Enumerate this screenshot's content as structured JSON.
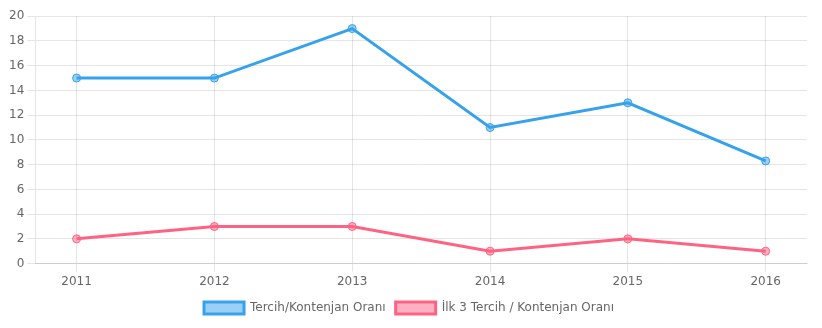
{
  "chart_data": {
    "type": "line",
    "x": [
      2011,
      2012,
      2013,
      2014,
      2015,
      2016
    ],
    "series": [
      {
        "name": "Tercih/Kontenjan Oranı",
        "values": [
          15,
          15,
          19,
          11,
          13,
          8.3
        ],
        "marker": "circle",
        "line_style": "solid"
      },
      {
        "name": "İlk 3 Tercih / Kontenjan Oranı",
        "values": [
          2,
          3,
          3,
          1,
          2,
          1
        ],
        "marker": "circle",
        "line_style": "solid"
      }
    ],
    "xlim": [
      2010.7,
      2016.3
    ],
    "xticks": [
      2011,
      2012,
      2013,
      2014,
      2015,
      2016
    ],
    "ylim": [
      0,
      20
    ],
    "yticks": [
      0,
      2,
      4,
      6,
      8,
      10,
      12,
      14,
      16,
      18,
      20
    ],
    "grid": true,
    "legend": "bottom"
  }
}
